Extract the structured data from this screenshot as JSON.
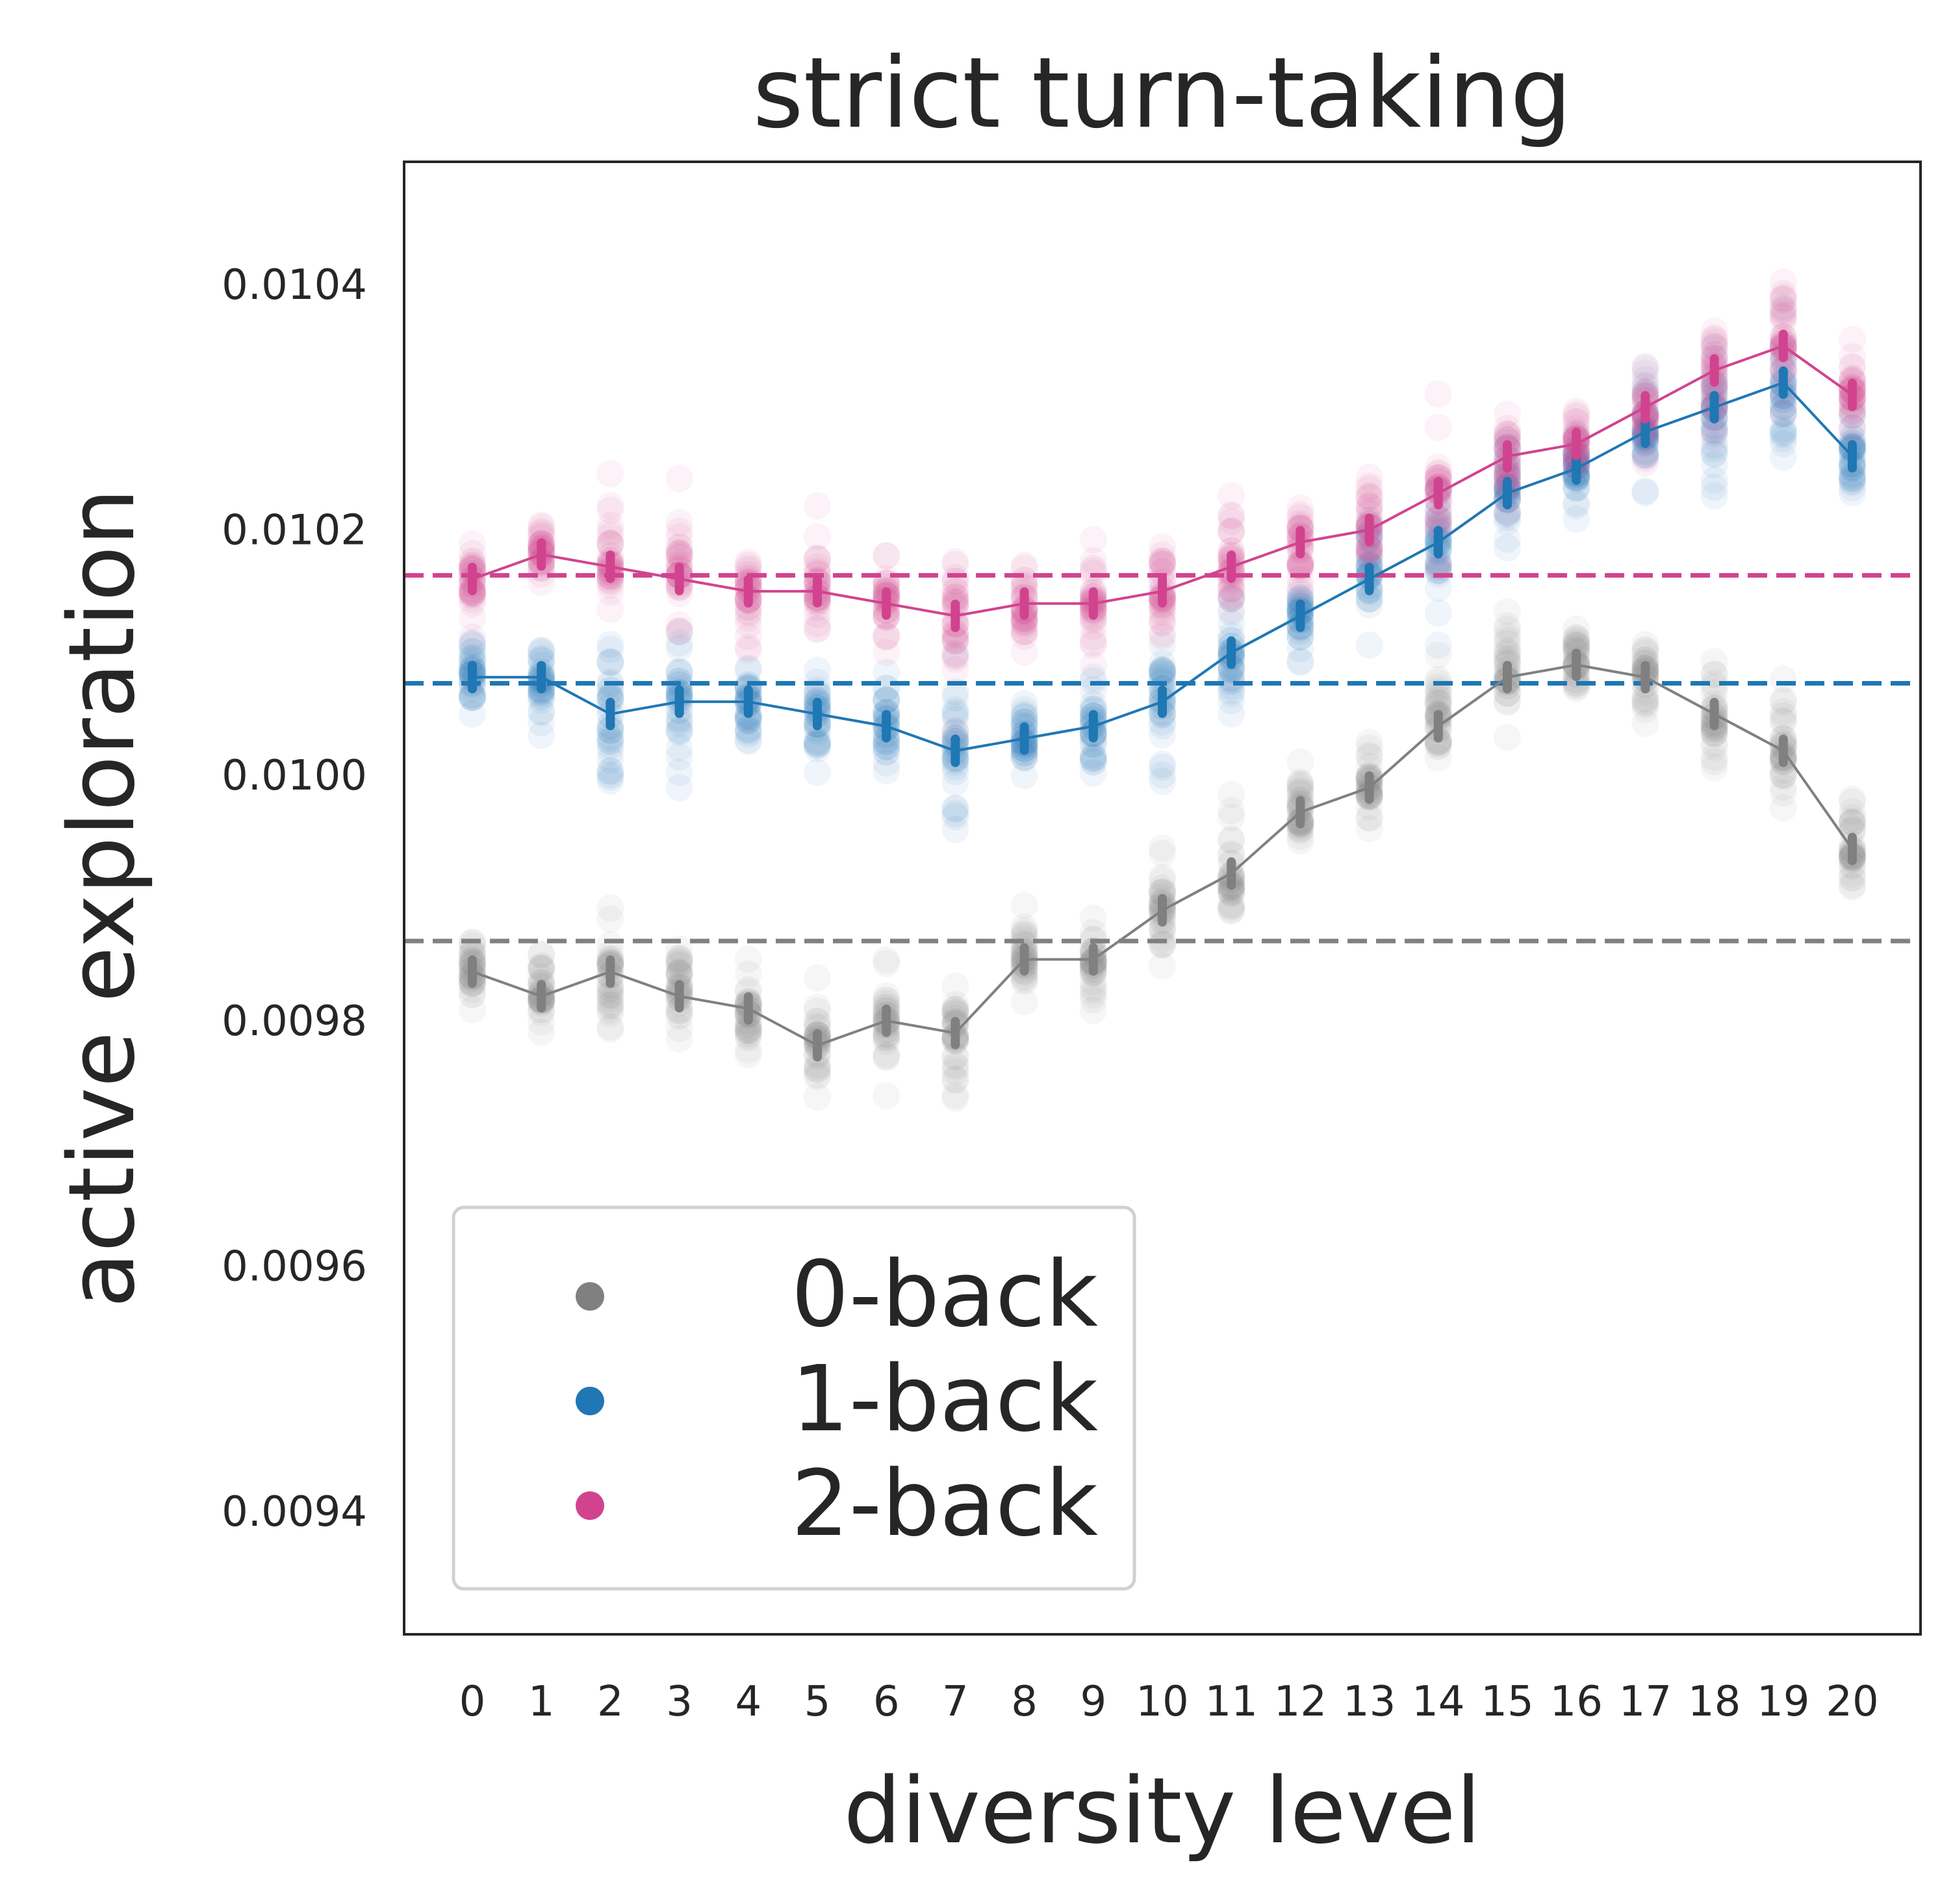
{
  "chart_data": {
    "type": "scatter",
    "title": "strict turn-taking",
    "xlabel": "diversity level",
    "ylabel": "active exploration",
    "x_categories": [
      "0",
      "1",
      "2",
      "3",
      "4",
      "5",
      "6",
      "7",
      "8",
      "9",
      "10",
      "11",
      "12",
      "13",
      "14",
      "15",
      "16",
      "17",
      "18",
      "19",
      "20"
    ],
    "yticks": [
      "0.0094",
      "0.0096",
      "0.0098",
      "0.0100",
      "0.0102",
      "0.0104"
    ],
    "ylim": [
      0.0093,
      0.0105
    ],
    "grid": false,
    "legend_position": "lower-left",
    "series": [
      {
        "name": "0-back",
        "color": "#808080",
        "means": [
          0.00984,
          0.00982,
          0.00984,
          0.00982,
          0.00981,
          0.00978,
          0.0098,
          0.00979,
          0.00985,
          0.00985,
          0.00989,
          0.00992,
          0.00997,
          0.00999,
          0.01004,
          0.01008,
          0.01009,
          0.01008,
          0.01005,
          0.01002,
          0.00994
        ],
        "baseline": 0.009865
      },
      {
        "name": "1-back",
        "color": "#1f77b4",
        "means": [
          0.01008,
          0.01008,
          0.01005,
          0.01006,
          0.01006,
          0.01005,
          0.01004,
          0.01002,
          0.01003,
          0.01004,
          0.01006,
          0.0101,
          0.01013,
          0.01016,
          0.01019,
          0.01023,
          0.01025,
          0.01028,
          0.0103,
          0.01032,
          0.01026
        ],
        "baseline": 0.010075
      },
      {
        "name": "2-back",
        "color": "#d1438f",
        "means": [
          0.01016,
          0.01018,
          0.01017,
          0.01016,
          0.01015,
          0.01015,
          0.01014,
          0.01013,
          0.01014,
          0.01014,
          0.01015,
          0.01017,
          0.01019,
          0.0102,
          0.01023,
          0.01026,
          0.01027,
          0.0103,
          0.01033,
          0.01035,
          0.01031
        ],
        "baseline": 0.010163
      }
    ]
  }
}
